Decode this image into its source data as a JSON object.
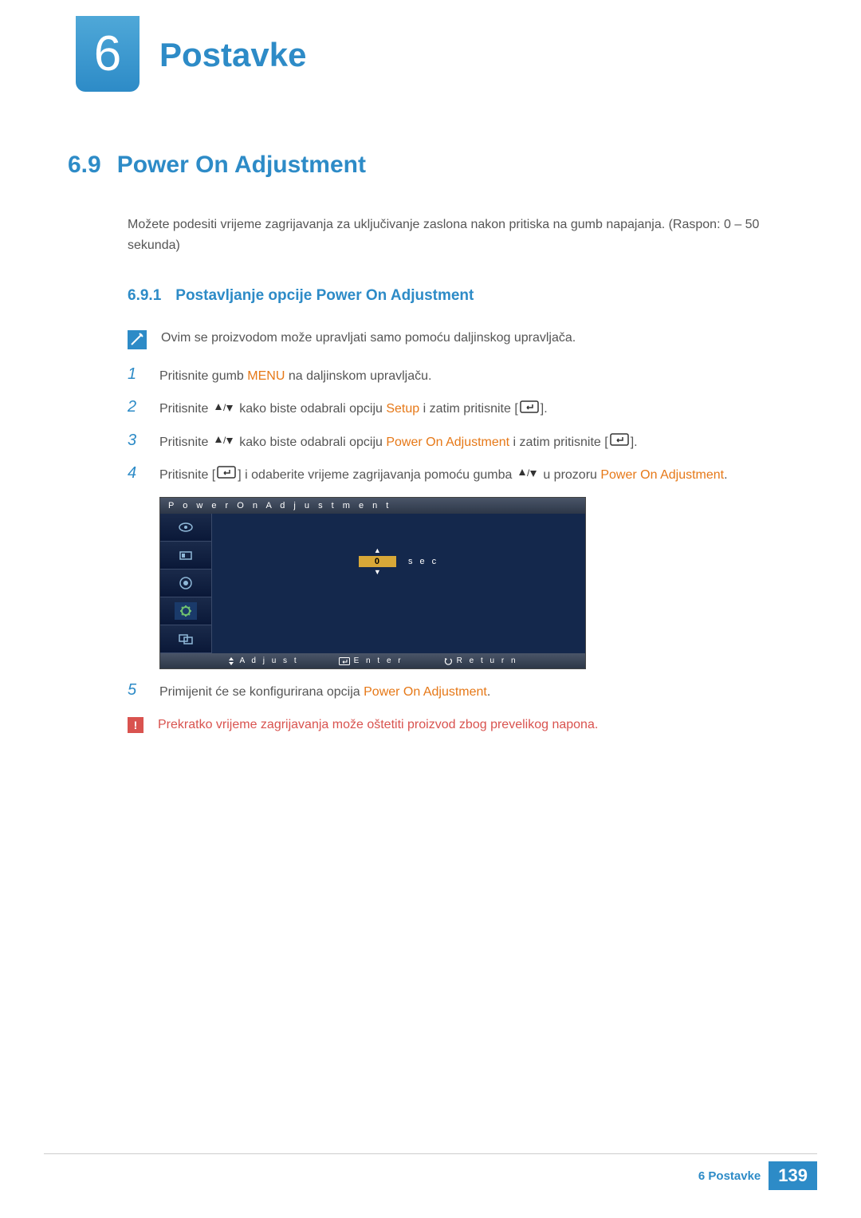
{
  "chapter": {
    "number": "6",
    "title": "Postavke"
  },
  "section": {
    "number": "6.9",
    "title": "Power On Adjustment",
    "intro": "Možete podesiti vrijeme zagrijavanja za uključivanje zaslona nakon pritiska na gumb napajanja. (Raspon: 0 – 50 sekunda)"
  },
  "subsection": {
    "number": "6.9.1",
    "title": "Postavljanje opcije Power On Adjustment"
  },
  "note": {
    "text": "Ovim se proizvodom može upravljati samo pomoću daljinskog upravljača."
  },
  "steps": [
    {
      "num": "1",
      "parts": [
        {
          "t": "Pritisnite gumb "
        },
        {
          "t": "MENU",
          "cls": "orange"
        },
        {
          "t": " na daljinskom upravljaču."
        }
      ]
    },
    {
      "num": "2",
      "parts": [
        {
          "t": "Pritisnite "
        },
        {
          "icon": "updown"
        },
        {
          "t": " kako biste odabrali opciju "
        },
        {
          "t": "Setup",
          "cls": "orange"
        },
        {
          "t": " i zatim pritisnite ["
        },
        {
          "icon": "enter"
        },
        {
          "t": "]."
        }
      ]
    },
    {
      "num": "3",
      "parts": [
        {
          "t": "Pritisnite "
        },
        {
          "icon": "updown"
        },
        {
          "t": " kako biste odabrali opciju "
        },
        {
          "t": "Power On Adjustment",
          "cls": "orange"
        },
        {
          "t": " i zatim pritisnite ["
        },
        {
          "icon": "enter"
        },
        {
          "t": "]."
        }
      ]
    },
    {
      "num": "4",
      "parts": [
        {
          "t": "Pritisnite ["
        },
        {
          "icon": "enter"
        },
        {
          "t": "] i odaberite vrijeme zagrijavanja pomoću gumba "
        },
        {
          "icon": "updown"
        },
        {
          "t": " u prozoru "
        },
        {
          "t": "Power On Adjustment",
          "cls": "orange"
        },
        {
          "t": "."
        }
      ]
    },
    {
      "num": "5",
      "parts": [
        {
          "t": "Primijenit će se konfigurirana opcija "
        },
        {
          "t": "Power On Adjustment",
          "cls": "orange"
        },
        {
          "t": "."
        }
      ]
    }
  ],
  "osd": {
    "title": "Power On Adjustment",
    "value": "0",
    "unit": "sec",
    "sidebar_icons": [
      "picture",
      "input",
      "sound",
      "setup",
      "multi"
    ],
    "footer": {
      "adjust": "Adjust",
      "enter": "Enter",
      "return": "Return"
    },
    "colors": {
      "window_bg": "#0a1838",
      "main_bg": "#14284c",
      "titlebar_gradient_top": "#4a5568",
      "titlebar_gradient_bottom": "#2d3748",
      "value_bg": "#d8a838",
      "border": "#3a4a6a"
    }
  },
  "warning": {
    "text": "Prekratko vrijeme zagrijavanja može oštetiti proizvod zbog prevelikog napona."
  },
  "footer": {
    "label": "6 Postavke",
    "page": "139"
  },
  "colors": {
    "brand_blue": "#2d8bc7",
    "orange": "#e67817",
    "warning_red": "#d9534f",
    "body_text": "#555555"
  }
}
